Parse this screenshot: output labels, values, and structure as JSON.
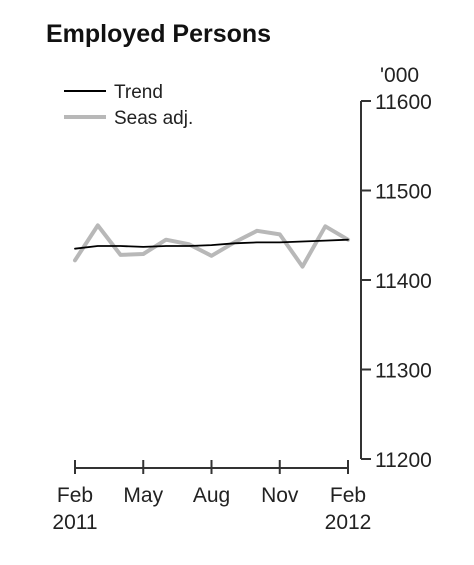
{
  "chart_data": {
    "type": "line",
    "title": "Employed Persons",
    "unit": "'000",
    "xlabel": "",
    "ylabel": "",
    "x": [
      "Feb 2011",
      "Mar 2011",
      "Apr 2011",
      "May 2011",
      "Jun 2011",
      "Jul 2011",
      "Aug 2011",
      "Sep 2011",
      "Oct 2011",
      "Nov 2011",
      "Dec 2011",
      "Jan 2012",
      "Feb 2012"
    ],
    "x_tick_labels": [
      {
        "month": "Feb",
        "year": "2011"
      },
      {
        "month": "May",
        "year": ""
      },
      {
        "month": "Aug",
        "year": ""
      },
      {
        "month": "Nov",
        "year": ""
      },
      {
        "month": "Feb",
        "year": "2012"
      }
    ],
    "x_tick_index": [
      0,
      3,
      6,
      9,
      12
    ],
    "y_ticks": [
      11200,
      11300,
      11400,
      11500,
      11600
    ],
    "y_tick_labels": [
      "11200",
      "11300",
      "11400",
      "11500",
      "11600"
    ],
    "ylim": [
      11200,
      11600
    ],
    "axis_side": "right",
    "grid": false,
    "legend_position": "top-left",
    "series": [
      {
        "name": "Trend",
        "color": "#000000",
        "values": [
          11435,
          11438,
          11438,
          11437,
          11438,
          11438,
          11439,
          11441,
          11442,
          11442,
          11443,
          11444,
          11445
        ]
      },
      {
        "name": "Seas adj.",
        "color": "#b8b8b8",
        "values": [
          11422,
          11461,
          11428,
          11429,
          11445,
          11440,
          11427,
          11442,
          11455,
          11451,
          11415,
          11460,
          11445
        ]
      }
    ]
  }
}
